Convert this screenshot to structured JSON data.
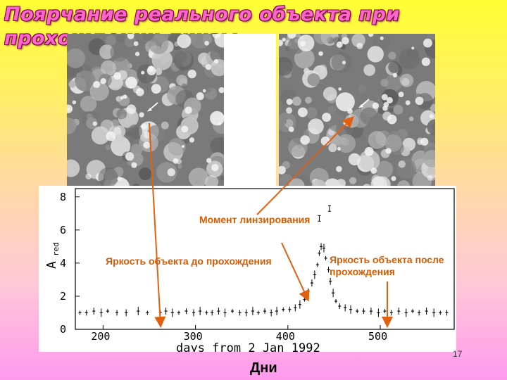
{
  "slide": {
    "title": "Поярчание реального объекта при прохождении линзы",
    "page_number": "17",
    "bottom_caption": "Дни"
  },
  "annotations": {
    "moment": "Момент линзирования",
    "before": "Яркость объекта до прохождения",
    "after": "Яркость объекта после прохождения"
  },
  "colors": {
    "arrow": "#e06010",
    "title_fill": "#ff66cc",
    "title_outline": "#7a0050"
  },
  "chart_data": {
    "type": "scatter",
    "xlabel": "days from 2 Jan 1992",
    "ylabel": "A",
    "ylabel_subscript": "red",
    "xlim": [
      170,
      580
    ],
    "ylim": [
      0,
      8.5
    ],
    "x_ticks": [
      200,
      300,
      400,
      500
    ],
    "y_ticks": [
      0,
      2,
      4,
      6,
      8
    ],
    "points": [
      [
        175,
        1.0
      ],
      [
        182,
        1.0
      ],
      [
        190,
        1.1
      ],
      [
        198,
        1.0
      ],
      [
        205,
        1.1
      ],
      [
        215,
        1.0
      ],
      [
        225,
        1.0
      ],
      [
        238,
        1.1
      ],
      [
        248,
        1.0
      ],
      [
        262,
        1.0
      ],
      [
        268,
        1.1
      ],
      [
        275,
        1.0
      ],
      [
        282,
        1.0
      ],
      [
        290,
        1.1
      ],
      [
        298,
        1.0
      ],
      [
        305,
        1.1
      ],
      [
        312,
        1.0
      ],
      [
        318,
        1.0
      ],
      [
        325,
        1.1
      ],
      [
        332,
        1.0
      ],
      [
        340,
        1.1
      ],
      [
        348,
        1.0
      ],
      [
        355,
        1.0
      ],
      [
        362,
        1.1
      ],
      [
        368,
        1.0
      ],
      [
        375,
        1.1
      ],
      [
        382,
        1.0
      ],
      [
        388,
        1.1
      ],
      [
        395,
        1.2
      ],
      [
        402,
        1.2
      ],
      [
        408,
        1.3
      ],
      [
        413,
        1.5
      ],
      [
        418,
        1.8
      ],
      [
        422,
        2.3
      ],
      [
        426,
        2.8
      ],
      [
        429,
        3.3
      ],
      [
        432,
        3.9
      ],
      [
        434,
        4.6
      ],
      [
        436,
        5.0
      ],
      [
        439,
        4.9
      ],
      [
        441,
        4.3
      ],
      [
        444,
        3.6
      ],
      [
        446,
        2.9
      ],
      [
        449,
        2.2
      ],
      [
        452,
        1.7
      ],
      [
        456,
        1.4
      ],
      [
        462,
        1.3
      ],
      [
        468,
        1.2
      ],
      [
        475,
        1.1
      ],
      [
        482,
        1.1
      ],
      [
        490,
        1.1
      ],
      [
        498,
        1.0
      ],
      [
        505,
        1.1
      ],
      [
        512,
        1.0
      ],
      [
        520,
        1.1
      ],
      [
        528,
        1.0
      ],
      [
        535,
        1.1
      ],
      [
        542,
        1.0
      ],
      [
        550,
        1.1
      ],
      [
        558,
        1.0
      ],
      [
        565,
        1.0
      ],
      [
        572,
        1.0
      ]
    ],
    "outliers": [
      [
        445,
        7.3
      ],
      [
        434,
        6.7
      ]
    ]
  }
}
